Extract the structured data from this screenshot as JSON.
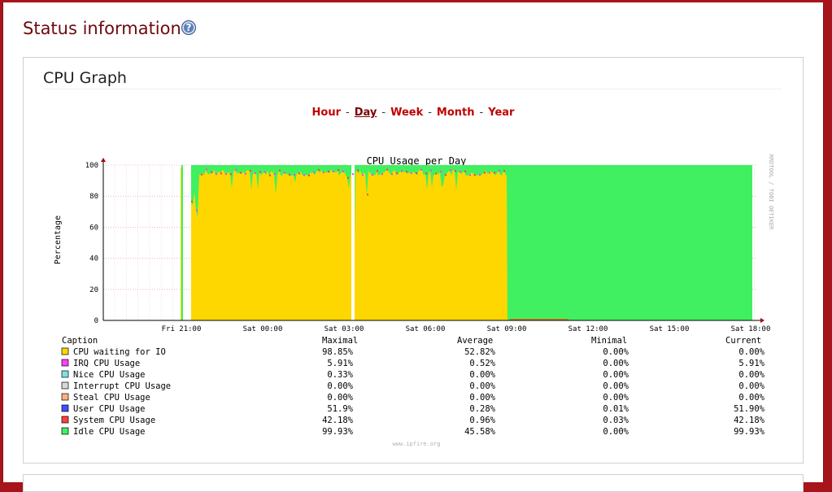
{
  "page": {
    "title": "Status information"
  },
  "panel": {
    "title": "CPU Graph",
    "periods": [
      {
        "label": "Hour",
        "active": false
      },
      {
        "label": "Day",
        "active": true
      },
      {
        "label": "Week",
        "active": false
      },
      {
        "label": "Month",
        "active": false
      },
      {
        "label": "Year",
        "active": false
      }
    ],
    "separator": "-"
  },
  "chart_data": {
    "type": "area",
    "title": "CPU Usage per Day",
    "ylabel": "Percentage",
    "ylim": [
      0,
      100
    ],
    "yticks": [
      0,
      20,
      40,
      60,
      80,
      100
    ],
    "xticks": [
      "Fri 21:00",
      "Sat 00:00",
      "Sat 03:00",
      "Sat 06:00",
      "Sat 09:00",
      "Sat 12:00",
      "Sat 15:00",
      "Sat 18:00"
    ],
    "grid": true,
    "side_label": "RRDTOOL / TOBI OETIKER",
    "footer": "www.ipfire.org",
    "table_headers": {
      "caption": "Caption",
      "max": "Maximal",
      "avg": "Average",
      "min": "Minimal",
      "cur": "Current"
    },
    "series": [
      {
        "name": "CPU waiting for IO",
        "color": "#ffd700",
        "max": "98.85%",
        "avg": "52.82%",
        "min": "0.00%",
        "cur": "0.00%"
      },
      {
        "name": "IRQ CPU Usage",
        "color": "#ff40ff",
        "max": "5.91%",
        "avg": "0.52%",
        "min": "0.00%",
        "cur": "5.91%"
      },
      {
        "name": "Nice CPU Usage",
        "color": "#80e0e0",
        "max": "0.33%",
        "avg": "0.00%",
        "min": "0.00%",
        "cur": "0.00%"
      },
      {
        "name": "Interrupt CPU Usage",
        "color": "#d8d8d8",
        "max": "0.00%",
        "avg": "0.00%",
        "min": "0.00%",
        "cur": "0.00%"
      },
      {
        "name": "Steal CPU Usage",
        "color": "#ffb080",
        "max": "0.00%",
        "avg": "0.00%",
        "min": "0.00%",
        "cur": "0.00%"
      },
      {
        "name": "User CPU Usage",
        "color": "#4050ff",
        "max": "51.9%",
        "avg": "0.28%",
        "min": "0.01%",
        "cur": "51.90%"
      },
      {
        "name": "System CPU Usage",
        "color": "#ff4040",
        "max": "42.18%",
        "avg": "0.96%",
        "min": "0.03%",
        "cur": "42.18%"
      },
      {
        "name": "Idle CPU Usage",
        "color": "#40f060",
        "max": "99.93%",
        "avg": "45.58%",
        "min": "0.00%",
        "cur": "99.93%"
      }
    ]
  }
}
